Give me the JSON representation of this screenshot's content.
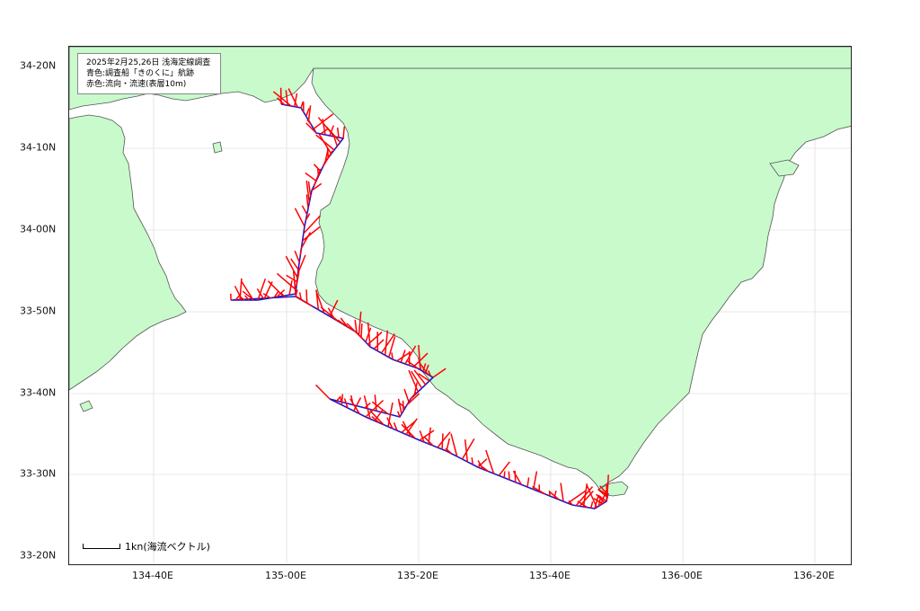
{
  "legend": {
    "line1": "2025年2月25,26日  浅海定線調査",
    "line2": "青色:調査船「きのくに」航跡",
    "line3": "赤色:流向・流速(表層10m)"
  },
  "scale": {
    "label": "1kn(海流ベクトル)"
  },
  "axes": {
    "lat_labels": [
      "34-20N",
      "34-10N",
      "34-00N",
      "33-50N",
      "33-40N",
      "33-30N",
      "33-20N"
    ],
    "lon_labels": [
      "134-40E",
      "135-00E",
      "135-20E",
      "135-40E",
      "136-00E",
      "136-20E"
    ]
  },
  "colors": {
    "land": "#c8facc",
    "coast": "#555555",
    "track": "#1a1acc",
    "vector": "#ff0000",
    "grid": "#e0e0e0"
  }
}
